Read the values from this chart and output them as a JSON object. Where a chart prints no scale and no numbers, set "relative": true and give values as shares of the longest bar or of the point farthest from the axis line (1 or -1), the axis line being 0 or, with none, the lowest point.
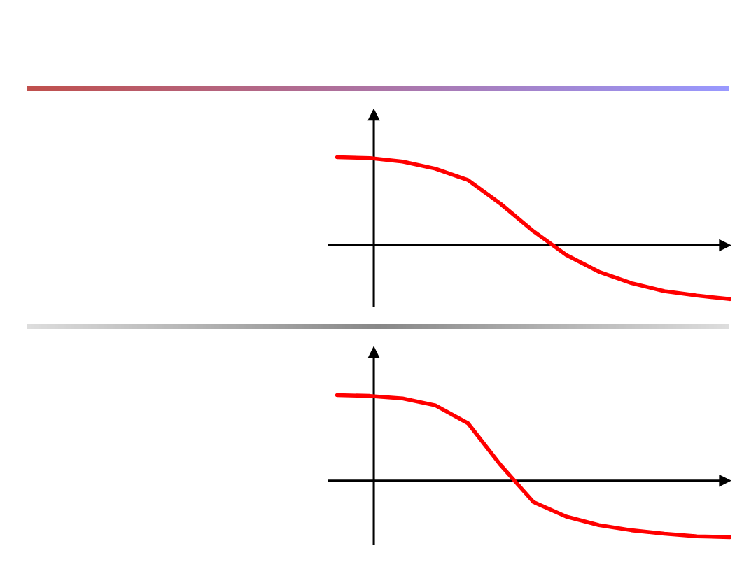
{
  "chart_data": [
    {
      "type": "line",
      "relative": true,
      "categories": [
        null,
        null,
        null,
        null,
        null,
        null,
        null,
        null,
        null,
        null,
        null,
        null,
        null
      ],
      "series": [
        {
          "color": "#ff0000",
          "values": [
            1.0,
            0.99,
            0.95,
            0.87,
            0.74,
            0.47,
            0.16,
            -0.11,
            -0.3,
            -0.43,
            -0.52,
            -0.57,
            -0.61
          ]
        }
      ]
    },
    {
      "type": "line",
      "relative": true,
      "categories": [
        null,
        null,
        null,
        null,
        null,
        null,
        null,
        null,
        null,
        null,
        null,
        null,
        null
      ],
      "series": [
        {
          "color": "#ff0000",
          "values": [
            1.0,
            0.99,
            0.96,
            0.88,
            0.67,
            0.18,
            -0.25,
            -0.42,
            -0.52,
            -0.58,
            -0.62,
            -0.65,
            -0.66
          ]
        }
      ]
    }
  ]
}
